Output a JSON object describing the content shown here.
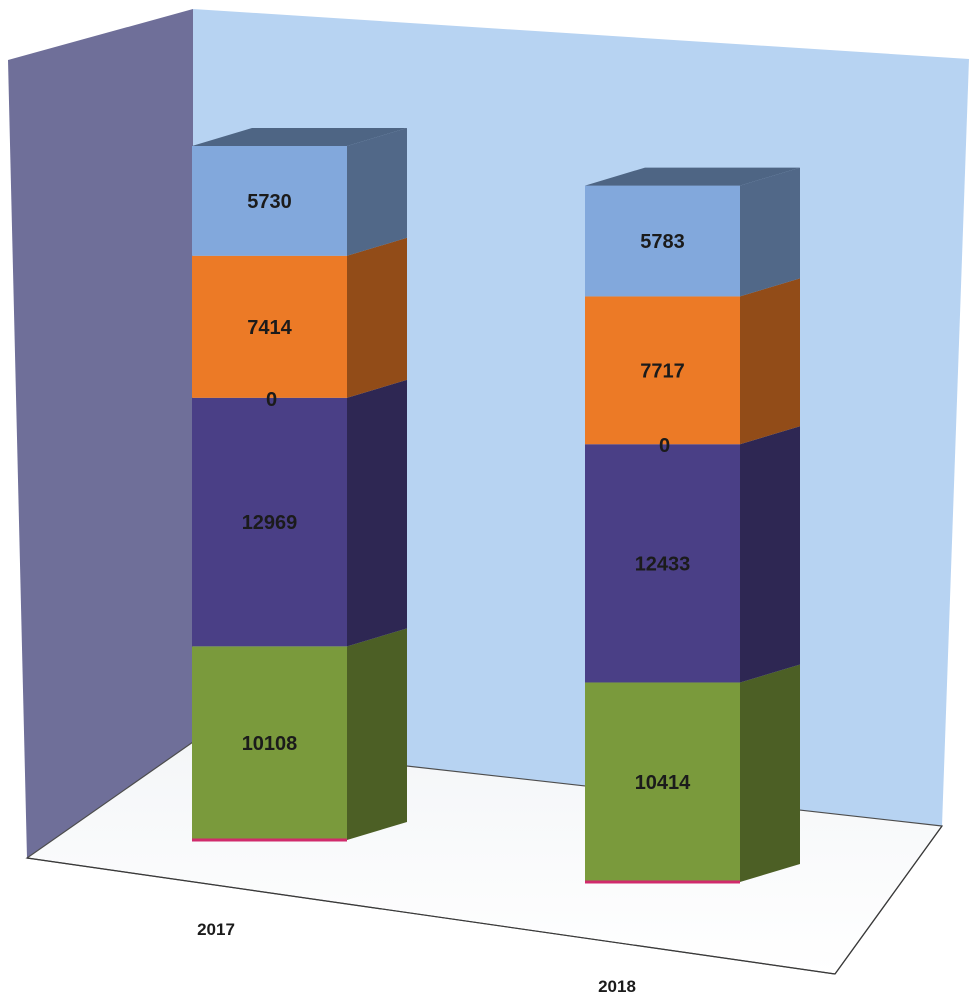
{
  "chart_data": {
    "type": "bar",
    "stacked": true,
    "three_d": true,
    "categories": [
      "2017",
      "2018"
    ],
    "series": [
      {
        "values": [
          10108,
          10414
        ],
        "color": "#7a9a3c"
      },
      {
        "values": [
          12969,
          12433
        ],
        "color": "#4a3f86"
      },
      {
        "values": [
          0,
          0
        ],
        "color": "#e8607a"
      },
      {
        "values": [
          7414,
          7717
        ],
        "color": "#ec7a26"
      },
      {
        "values": [
          5730,
          5783
        ],
        "color": "#82a8dc"
      }
    ],
    "wall_colors": {
      "back": "#b7d3f2",
      "side": "#6f6f99",
      "floor": "#ffffff"
    },
    "grid": false,
    "legend": "none"
  }
}
